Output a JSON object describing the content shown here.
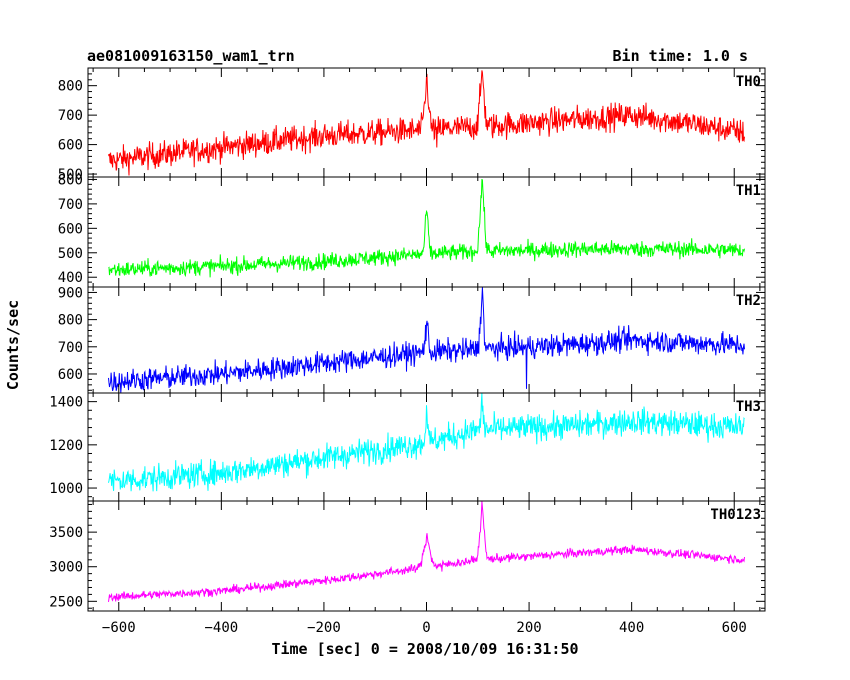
{
  "header": {
    "title": "ae081009163150_wam1_trn",
    "bin_time": "Bin time: 1.0 s"
  },
  "chart_data": {
    "type": "line",
    "xlabel": "Time [sec] 0 = 2008/10/09 16:31:50",
    "ylabel": "Counts/sec",
    "xlim": [
      -660,
      660
    ],
    "xticks": [
      -600,
      -400,
      -200,
      0,
      200,
      400,
      600
    ],
    "x_tick_labels": [
      "−600",
      "−400",
      "−200",
      "0",
      "200",
      "400",
      "600"
    ],
    "x_start": -620,
    "x_end": 620,
    "bin_time_s": 1.0,
    "panels": [
      {
        "name": "TH0",
        "color": "#ff0000",
        "ylim": [
          490,
          860
        ],
        "yticks": [
          500,
          600,
          700,
          800
        ],
        "trend": [
          [
            -620,
            545
          ],
          [
            -400,
            590
          ],
          [
            -200,
            630
          ],
          [
            0,
            650
          ],
          [
            100,
            660
          ],
          [
            250,
            680
          ],
          [
            400,
            700
          ],
          [
            520,
            670
          ],
          [
            620,
            640
          ]
        ],
        "noise": 40,
        "peaks": [
          [
            0,
            820,
            4
          ],
          [
            108,
            850,
            4
          ]
        ],
        "dips": [
          [
            20,
            590
          ]
        ]
      },
      {
        "name": "TH1",
        "color": "#00ff00",
        "ylim": [
          360,
          810
        ],
        "yticks": [
          400,
          500,
          600,
          700,
          800
        ],
        "trend": [
          [
            -620,
            430
          ],
          [
            -400,
            445
          ],
          [
            -200,
            465
          ],
          [
            0,
            495
          ],
          [
            100,
            505
          ],
          [
            300,
            515
          ],
          [
            500,
            515
          ],
          [
            620,
            510
          ]
        ],
        "noise": 30,
        "peaks": [
          [
            0,
            680,
            3
          ],
          [
            108,
            800,
            4
          ]
        ],
        "dips": []
      },
      {
        "name": "TH2",
        "color": "#0000ff",
        "ylim": [
          530,
          920
        ],
        "yticks": [
          600,
          700,
          800,
          900
        ],
        "trend": [
          [
            -620,
            570
          ],
          [
            -400,
            600
          ],
          [
            -200,
            640
          ],
          [
            0,
            680
          ],
          [
            100,
            690
          ],
          [
            300,
            710
          ],
          [
            400,
            725
          ],
          [
            620,
            705
          ]
        ],
        "noise": 38,
        "peaks": [
          [
            0,
            790,
            3
          ],
          [
            108,
            910,
            3
          ]
        ],
        "dips": [
          [
            195,
            545
          ]
        ]
      },
      {
        "name": "TH3",
        "color": "#00ffff",
        "ylim": [
          940,
          1440
        ],
        "yticks": [
          1000,
          1200,
          1400
        ],
        "trend": [
          [
            -620,
            1030
          ],
          [
            -400,
            1070
          ],
          [
            -200,
            1140
          ],
          [
            0,
            1210
          ],
          [
            100,
            1270
          ],
          [
            300,
            1290
          ],
          [
            400,
            1310
          ],
          [
            620,
            1280
          ]
        ],
        "noise": 55,
        "peaks": [
          [
            0,
            1380,
            2
          ],
          [
            108,
            1420,
            2
          ]
        ],
        "dips": []
      },
      {
        "name": "TH0123",
        "color": "#ff00ff",
        "ylim": [
          2360,
          3950
        ],
        "yticks": [
          2500,
          3000,
          3500
        ],
        "trend": [
          [
            -620,
            2560
          ],
          [
            -400,
            2650
          ],
          [
            -200,
            2800
          ],
          [
            0,
            2990
          ],
          [
            100,
            3100
          ],
          [
            200,
            3150
          ],
          [
            400,
            3250
          ],
          [
            620,
            3100
          ]
        ],
        "noise": 55,
        "peaks": [
          [
            0,
            3450,
            6
          ],
          [
            108,
            3900,
            4
          ]
        ],
        "dips": [
          [
            30,
            2930
          ]
        ]
      }
    ]
  }
}
